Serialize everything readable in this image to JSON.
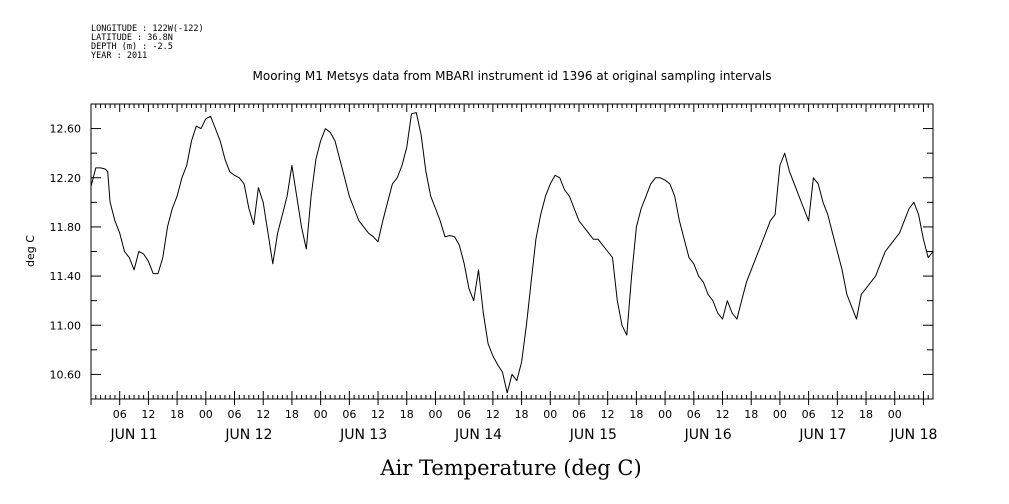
{
  "meta": {
    "longitude": "LONGITUDE : 122W(-122)",
    "latitude": "LATITUDE : 36.8N",
    "depth": "DEPTH (m) : -2.5",
    "year": "YEAR : 2011"
  },
  "chart_data": {
    "type": "line",
    "title": "Mooring M1 Metsys data from MBARI instrument id 1396 at original sampling intervals",
    "xlabel": "Air Temperature (deg C)",
    "ylabel": "deg C",
    "xlim_hours": [
      0,
      176
    ],
    "ylim": [
      10.4,
      12.8
    ],
    "y_ticks": [
      10.6,
      11.0,
      11.4,
      11.8,
      12.2,
      12.6
    ],
    "y_tick_labels": [
      "10.60",
      "11.00",
      "11.40",
      "11.80",
      "12.20",
      "12.60"
    ],
    "hour_ticks": [
      {
        "h": 6,
        "label": "06"
      },
      {
        "h": 12,
        "label": "12"
      },
      {
        "h": 18,
        "label": "18"
      },
      {
        "h": 24,
        "label": "00"
      },
      {
        "h": 30,
        "label": "06"
      },
      {
        "h": 36,
        "label": "12"
      },
      {
        "h": 42,
        "label": "18"
      },
      {
        "h": 48,
        "label": "00"
      },
      {
        "h": 54,
        "label": "06"
      },
      {
        "h": 60,
        "label": "12"
      },
      {
        "h": 66,
        "label": "18"
      },
      {
        "h": 72,
        "label": "00"
      },
      {
        "h": 78,
        "label": "06"
      },
      {
        "h": 84,
        "label": "12"
      },
      {
        "h": 90,
        "label": "18"
      },
      {
        "h": 96,
        "label": "00"
      },
      {
        "h": 102,
        "label": "06"
      },
      {
        "h": 108,
        "label": "12"
      },
      {
        "h": 114,
        "label": "18"
      },
      {
        "h": 120,
        "label": "00"
      },
      {
        "h": 126,
        "label": "06"
      },
      {
        "h": 132,
        "label": "12"
      },
      {
        "h": 138,
        "label": "18"
      },
      {
        "h": 144,
        "label": "00"
      },
      {
        "h": 150,
        "label": "06"
      },
      {
        "h": 156,
        "label": "12"
      },
      {
        "h": 162,
        "label": "18"
      },
      {
        "h": 168,
        "label": "00"
      }
    ],
    "day_labels": [
      {
        "h": 9,
        "label": "JUN 11"
      },
      {
        "h": 33,
        "label": "JUN 12"
      },
      {
        "h": 57,
        "label": "JUN 13"
      },
      {
        "h": 81,
        "label": "JUN 14"
      },
      {
        "h": 105,
        "label": "JUN 15"
      },
      {
        "h": 129,
        "label": "JUN 16"
      },
      {
        "h": 153,
        "label": "JUN 17"
      },
      {
        "h": 172,
        "label": "JUN 18"
      }
    ],
    "series": [
      {
        "hours": [
          0,
          1,
          2,
          3,
          3.5,
          4,
          5,
          6,
          7,
          8,
          9,
          10,
          11,
          12,
          13,
          14,
          15,
          16,
          17,
          18,
          19,
          20,
          21,
          22,
          23,
          24,
          25,
          26,
          27,
          28,
          29,
          30,
          31,
          32,
          33,
          34,
          35,
          36,
          37,
          38,
          39,
          40,
          41,
          42,
          43,
          44,
          45,
          46,
          47,
          48,
          49,
          50,
          51,
          52,
          53,
          54,
          55,
          56,
          57,
          58,
          59,
          60,
          61,
          62,
          63,
          64,
          65,
          66,
          67,
          68,
          69,
          70,
          71,
          72,
          73,
          74,
          75,
          76,
          77,
          78,
          79,
          80,
          81,
          82,
          83,
          84,
          85,
          86,
          87,
          88,
          89,
          90,
          91,
          92,
          93,
          94,
          95,
          96,
          97,
          98,
          99,
          100,
          101,
          102,
          103,
          104,
          105,
          106,
          107,
          108,
          109,
          110,
          111,
          112,
          113,
          114,
          115,
          116,
          117,
          118,
          119,
          120,
          121,
          122,
          123,
          124,
          125,
          126,
          127,
          128,
          129,
          130,
          131,
          132,
          133,
          134,
          135,
          136,
          137,
          138,
          139,
          140,
          141,
          142,
          143,
          144,
          145,
          146,
          147,
          148,
          149,
          150,
          151,
          152,
          153,
          154,
          155,
          156,
          157,
          158,
          159,
          160,
          161,
          162,
          163,
          164,
          165,
          166,
          167,
          168,
          169,
          170,
          171,
          172,
          173,
          174,
          175,
          176
        ],
        "values": [
          12.13,
          12.28,
          12.28,
          12.27,
          12.25,
          12.0,
          11.85,
          11.75,
          11.6,
          11.55,
          11.45,
          11.6,
          11.58,
          11.52,
          11.42,
          11.42,
          11.55,
          11.8,
          11.95,
          12.05,
          12.2,
          12.3,
          12.5,
          12.62,
          12.6,
          12.68,
          12.7,
          12.6,
          12.5,
          12.35,
          12.25,
          12.22,
          12.2,
          12.15,
          11.95,
          11.82,
          12.12,
          12.0,
          11.75,
          11.5,
          11.75,
          11.9,
          12.05,
          12.3,
          12.05,
          11.8,
          11.62,
          12.05,
          12.35,
          12.5,
          12.6,
          12.57,
          12.5,
          12.35,
          12.2,
          12.05,
          11.95,
          11.85,
          11.8,
          11.75,
          11.72,
          11.68,
          11.85,
          12.0,
          12.15,
          12.2,
          12.3,
          12.45,
          12.72,
          12.73,
          12.55,
          12.25,
          12.05,
          11.95,
          11.85,
          11.72,
          11.73,
          11.72,
          11.65,
          11.5,
          11.3,
          11.2,
          11.45,
          11.1,
          10.85,
          10.75,
          10.68,
          10.62,
          10.45,
          10.6,
          10.55,
          10.7,
          11.0,
          11.35,
          11.7,
          11.9,
          12.05,
          12.15,
          12.22,
          12.2,
          12.1,
          12.05,
          11.95,
          11.85,
          11.8,
          11.75,
          11.7,
          11.7,
          11.65,
          11.6,
          11.55,
          11.2,
          11.0,
          10.92,
          11.4,
          11.8,
          11.95,
          12.05,
          12.15,
          12.2,
          12.2,
          12.18,
          12.15,
          12.05,
          11.85,
          11.7,
          11.55,
          11.5,
          11.4,
          11.35,
          11.25,
          11.2,
          11.1,
          11.05,
          11.2,
          11.1,
          11.05,
          11.2,
          11.35,
          11.45,
          11.55,
          11.65,
          11.75,
          11.85,
          11.9,
          12.3,
          12.4,
          12.25,
          12.15,
          12.05,
          11.95,
          11.85,
          12.2,
          12.15,
          12.0,
          11.9,
          11.75,
          11.6,
          11.45,
          11.25,
          11.15,
          11.05,
          11.25,
          11.3,
          11.35,
          11.4,
          11.5,
          11.6,
          11.65,
          11.7,
          11.75,
          11.85,
          11.95,
          12.0,
          11.9,
          11.7,
          11.55,
          11.6
        ]
      }
    ]
  }
}
